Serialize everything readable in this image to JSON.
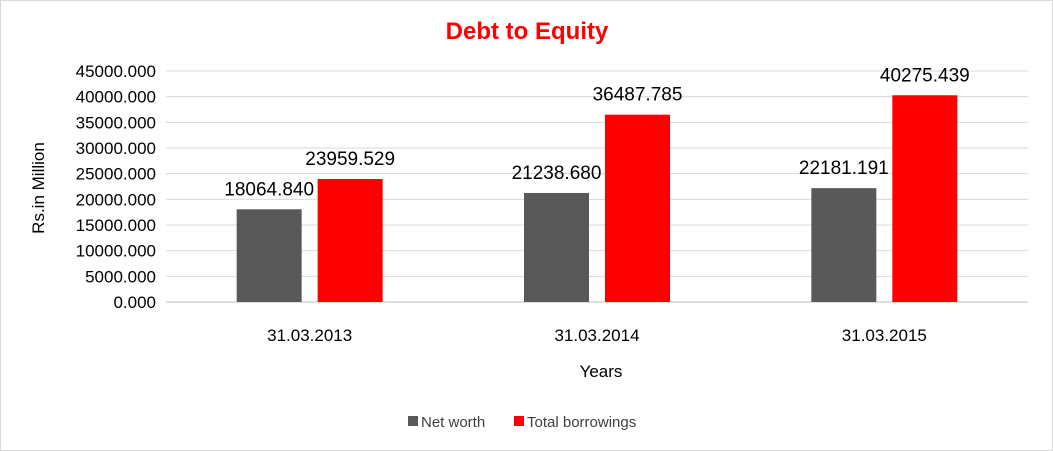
{
  "chart_data": {
    "type": "bar",
    "title": "Debt to Equity",
    "xlabel": "Years",
    "ylabel": "Rs.in Million",
    "categories": [
      "31.03.2013",
      "31.03.2014",
      "31.03.2015"
    ],
    "series": [
      {
        "name": "Net worth",
        "color": "#595959",
        "values": [
          18064.84,
          21238.68,
          22181.191
        ],
        "labels": [
          "18064.840",
          "21238.680",
          "22181.191"
        ]
      },
      {
        "name": "Total borrowings",
        "color": "#ff0000",
        "values": [
          23959.529,
          36487.785,
          40275.439
        ],
        "labels": [
          "23959.529",
          "36487.785",
          "40275.439"
        ]
      }
    ],
    "ylim": [
      0,
      45000
    ],
    "yticks": [
      0,
      5000,
      10000,
      15000,
      20000,
      25000,
      30000,
      35000,
      40000,
      45000
    ],
    "ytick_labels": [
      "0.000",
      "5000.000",
      "10000.000",
      "15000.000",
      "20000.000",
      "25000.000",
      "30000.000",
      "35000.000",
      "40000.000",
      "45000.000"
    ],
    "grid": true,
    "legend_position": "bottom",
    "title_color": "#ff0000"
  }
}
